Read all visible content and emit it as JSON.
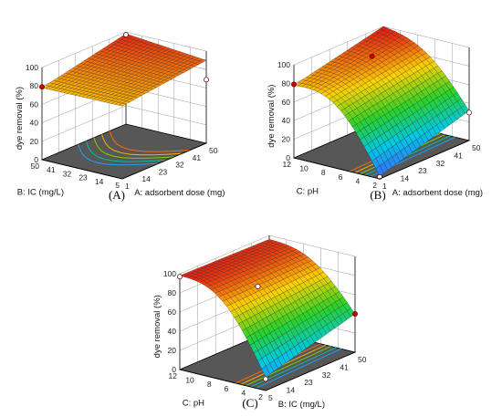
{
  "chart_data": [
    {
      "type": "surface",
      "panel_label": "(A)",
      "x_label": "A: adsorbent dose (mg)",
      "y_label": "B: IC (mg/L)",
      "z_label": "dye removal (%)",
      "x_ticks": [
        "1",
        "14",
        "23",
        "32",
        "41",
        "50"
      ],
      "y_ticks": [
        "5",
        "14",
        "23",
        "32",
        "41",
        "50"
      ],
      "z_ticks": [
        "0",
        "20",
        "40",
        "60",
        "80",
        "100"
      ],
      "zlim": [
        0,
        100
      ],
      "corner_values": {
        "x_low_y_low": 79,
        "x_high_y_low": 90,
        "x_low_y_high": 78,
        "x_high_y_high": 98
      },
      "design_points": [
        {
          "x": 1,
          "y": 50,
          "z": 79
        },
        {
          "x": 50,
          "y": 50,
          "z": 97
        },
        {
          "x": 50,
          "y": 5,
          "z": 69
        }
      ]
    },
    {
      "type": "surface",
      "panel_label": "(B)",
      "x_label": "A: adsorbent dose (mg)",
      "y_label": "C: pH",
      "z_label": "dye removal (%)",
      "x_ticks": [
        "1",
        "14",
        "23",
        "32",
        "41",
        "50"
      ],
      "y_ticks": [
        "2",
        "4",
        "6",
        "8",
        "10",
        "12"
      ],
      "z_ticks": [
        "0",
        "20",
        "40",
        "60",
        "80",
        "100"
      ],
      "zlim": [
        0,
        100
      ],
      "corner_values": {
        "x_low_y_low": 3,
        "x_high_y_low": 32,
        "x_low_y_high": 78,
        "x_high_y_high": 100
      },
      "design_points": [
        {
          "x": 1,
          "y": 12,
          "z": 79
        },
        {
          "x": 25,
          "y": 8,
          "z": 98
        },
        {
          "x": 1,
          "y": 2,
          "z": 2
        },
        {
          "x": 50,
          "y": 2,
          "z": 30
        }
      ]
    },
    {
      "type": "surface",
      "panel_label": "(C)",
      "x_label": "B: IC (mg/L)",
      "y_label": "C: pH",
      "z_label": "dye removal (%)",
      "x_ticks": [
        "5",
        "14",
        "23",
        "32",
        "41",
        "50"
      ],
      "y_ticks": [
        "2",
        "4",
        "6",
        "8",
        "10",
        "12"
      ],
      "z_ticks": [
        "0",
        "20",
        "40",
        "60",
        "80",
        "100"
      ],
      "zlim": [
        0,
        100
      ],
      "corner_values": {
        "x_low_y_low": 14,
        "x_high_y_low": 40,
        "x_low_y_high": 98,
        "x_high_y_high": 96
      },
      "design_points": [
        {
          "x": 5,
          "y": 12,
          "z": 97
        },
        {
          "x": 27,
          "y": 8,
          "z": 76
        },
        {
          "x": 5,
          "y": 2,
          "z": 12
        },
        {
          "x": 50,
          "y": 2,
          "z": 40
        }
      ]
    }
  ]
}
